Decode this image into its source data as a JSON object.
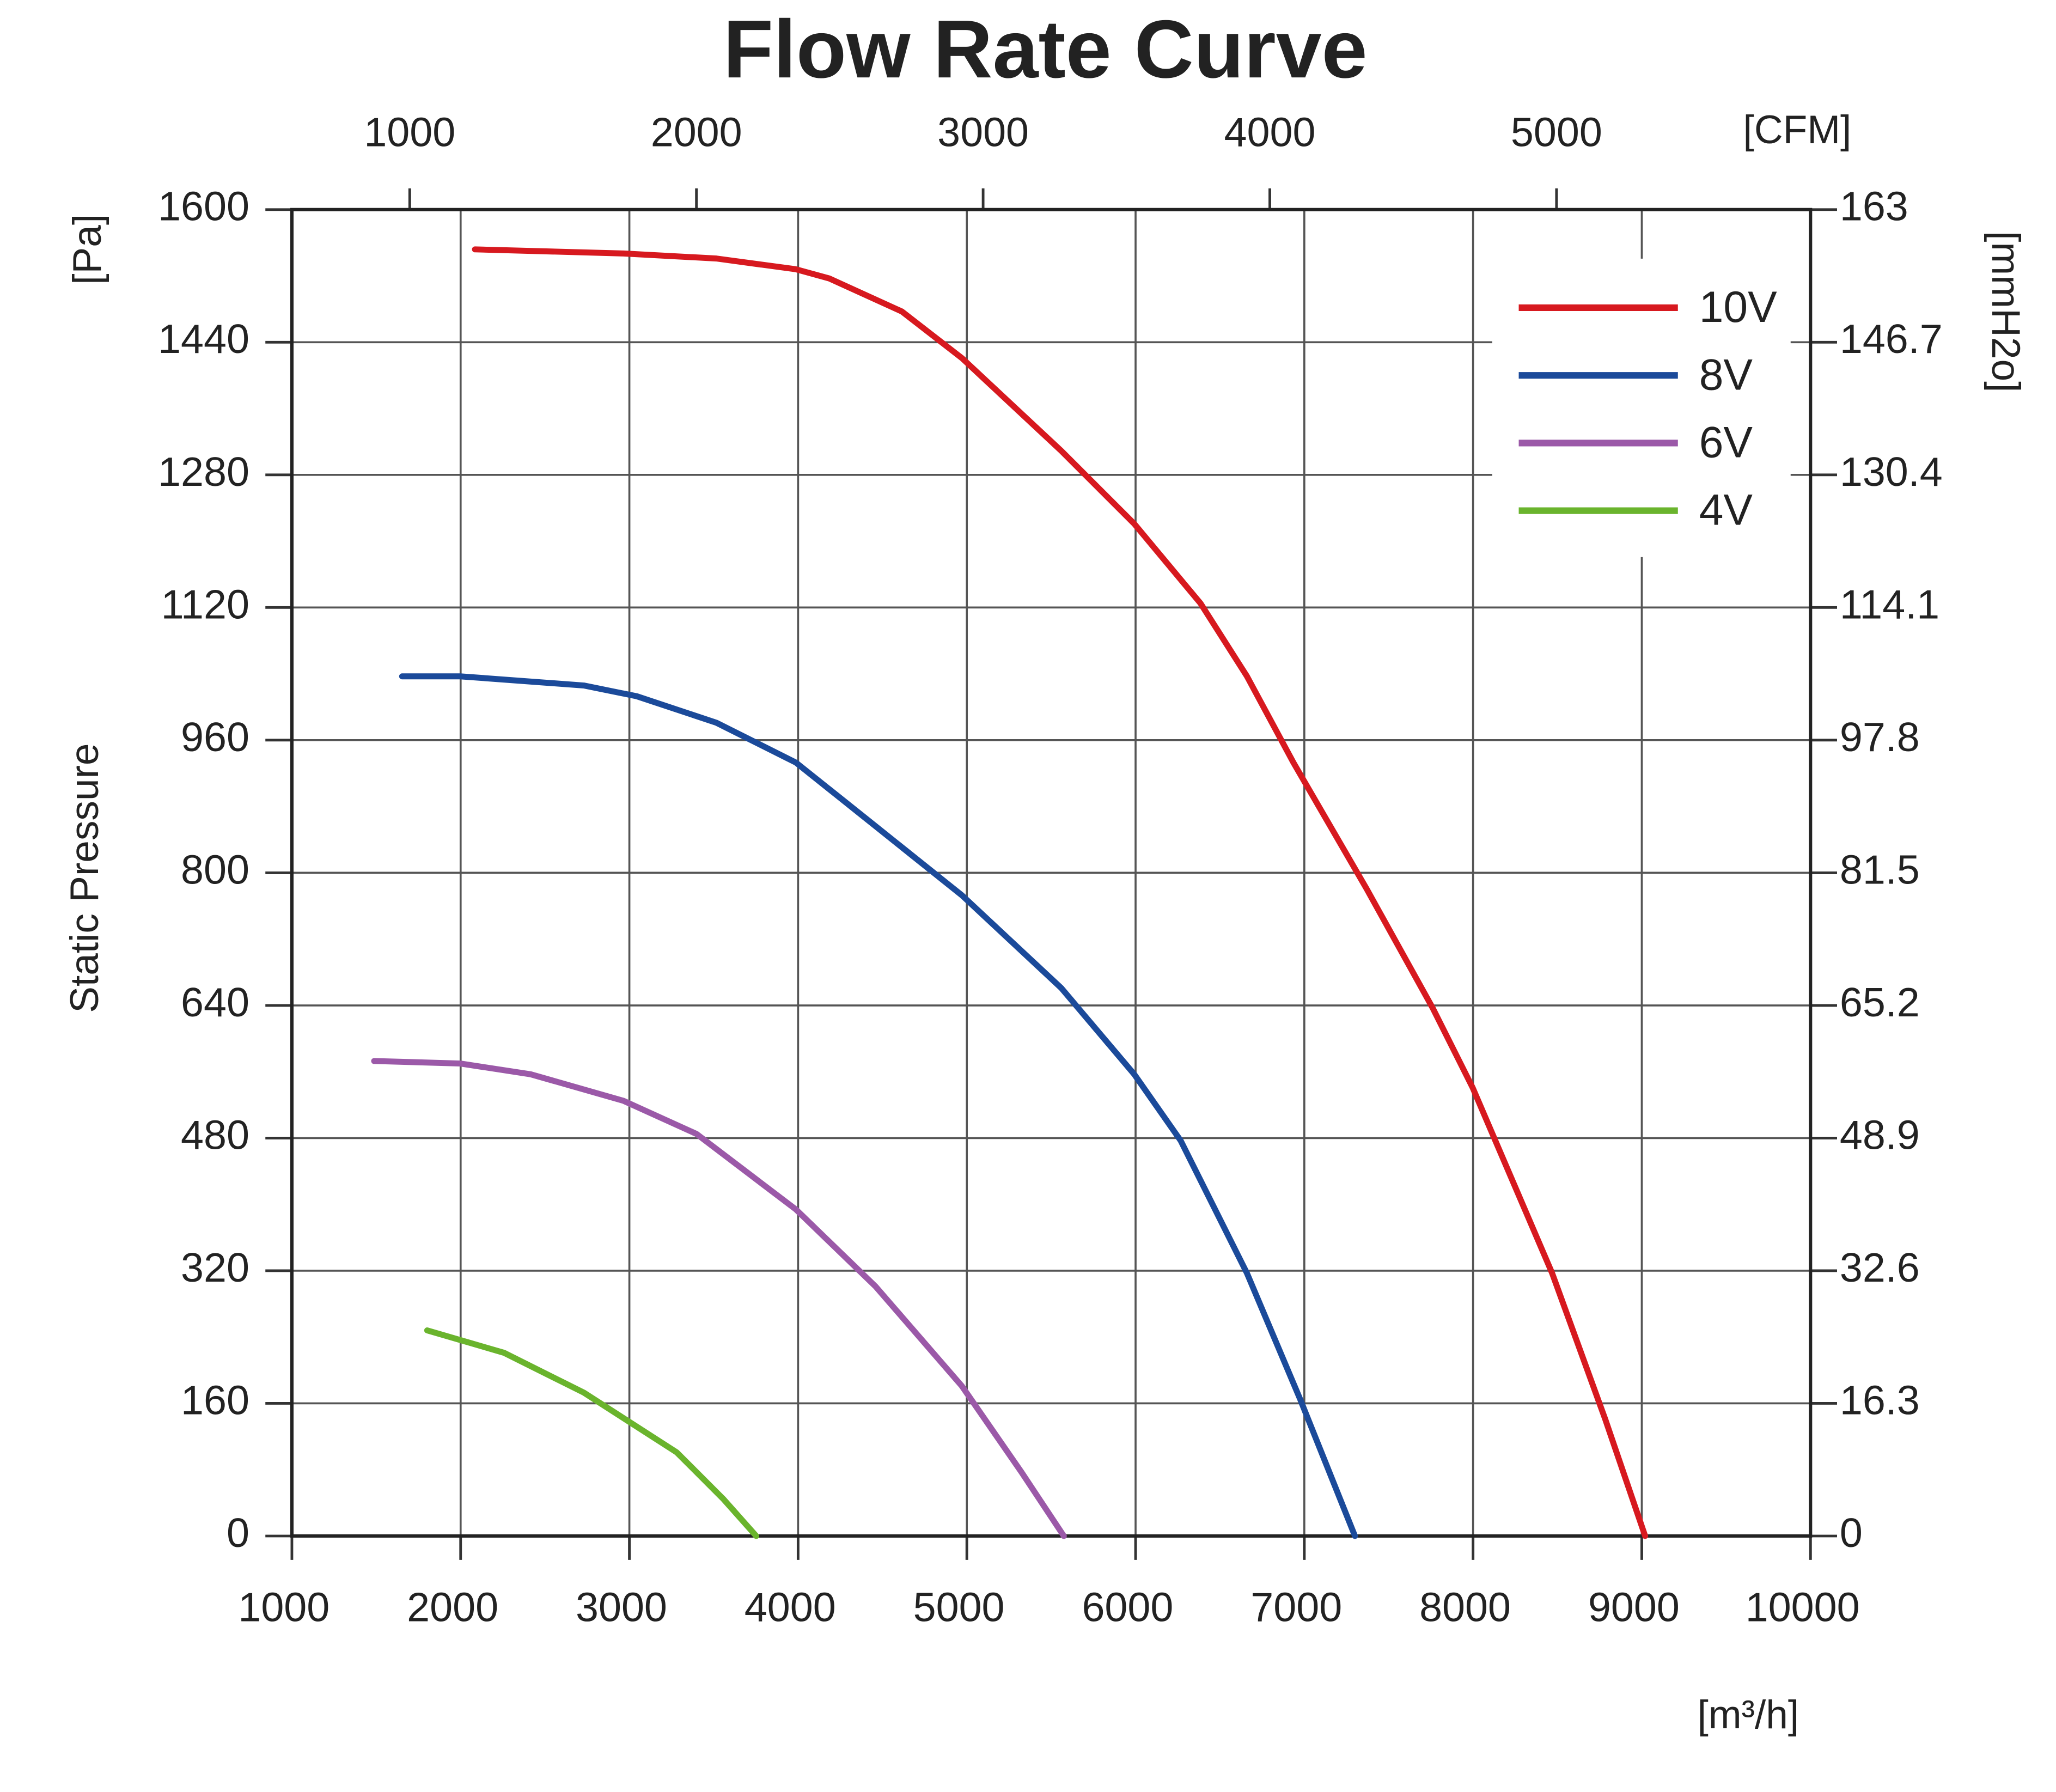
{
  "chart_data": {
    "type": "line",
    "title": "Flow Rate Curve",
    "y_label": "Static Pressure",
    "y_unit": "[Pa]",
    "y2_unit": "[mmH2o]",
    "x_unit": "[m³/h]",
    "x2_unit": "[CFM]",
    "xlim": [
      1000,
      10000
    ],
    "xticks": [
      1000,
      2000,
      3000,
      4000,
      5000,
      6000,
      7000,
      8000,
      9000,
      10000
    ],
    "x2lim": [
      589,
      5886
    ],
    "x2ticks": [
      1000,
      2000,
      3000,
      4000,
      5000
    ],
    "ylim": [
      0,
      1600
    ],
    "yticks": [
      0,
      160,
      320,
      480,
      640,
      800,
      960,
      1120,
      1280,
      1440,
      1600
    ],
    "y2lim": [
      0,
      163
    ],
    "y2ticks": [
      0,
      16.3,
      32.6,
      48.9,
      65.2,
      81.5,
      97.8,
      114.1,
      130.4,
      146.7,
      163
    ],
    "grid": true,
    "legend": "upper right",
    "series": [
      {
        "name": "10V",
        "color": "#d7191f",
        "x": [
          2085,
          2965,
          3516,
          3987,
          4184,
          4616,
          4970,
          5560,
          5992,
          6385,
          6660,
          6935,
          7368,
          7761,
          7997,
          8469,
          8783,
          9020
        ],
        "values": [
          1552,
          1547,
          1541,
          1528,
          1517,
          1477,
          1421,
          1309,
          1221,
          1125,
          1037,
          933,
          781,
          637,
          541,
          317,
          141,
          0
        ]
      },
      {
        "name": "8V",
        "color": "#1b4a9a",
        "x": [
          1653,
          1998,
          2730,
          3044,
          3516,
          3987,
          4381,
          4970,
          5560,
          5992,
          6267,
          6660,
          6975,
          7300
        ],
        "values": [
          1037,
          1037,
          1026,
          1013,
          981,
          933,
          869,
          773,
          661,
          557,
          477,
          317,
          165,
          0
        ]
      },
      {
        "name": "6V",
        "color": "#9b59a8",
        "x": [
          1487,
          1998,
          2415,
          2965,
          3398,
          3987,
          4459,
          4970,
          5324,
          5575
        ],
        "values": [
          573,
          570,
          557,
          525,
          485,
          394,
          301,
          181,
          77,
          0
        ]
      },
      {
        "name": "4V",
        "color": "#6ab42d",
        "x": [
          1802,
          2258,
          2730,
          3280,
          3555,
          3752
        ],
        "values": [
          248,
          221,
          173,
          101,
          45,
          0
        ]
      }
    ]
  }
}
